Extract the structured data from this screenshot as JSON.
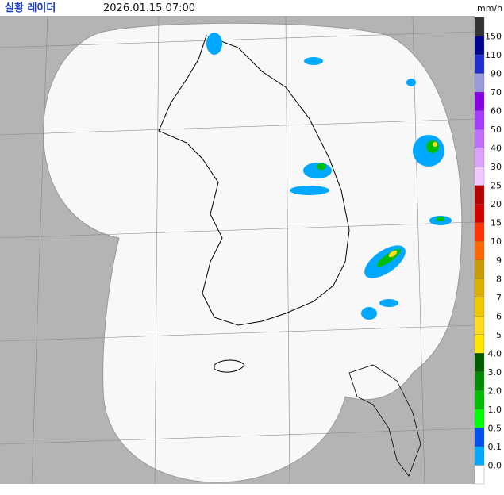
{
  "header": {
    "title": "실황 레이더",
    "time": "2026.01.15.07:00",
    "unit": "mm/h"
  },
  "legend": {
    "top_color": "#333333",
    "items": [
      {
        "label": "150",
        "color": "#000390"
      },
      {
        "label": "110",
        "color": "#1f2dd2"
      },
      {
        "label": "90",
        "color": "#9b9bdc"
      },
      {
        "label": "70",
        "color": "#8a00e6"
      },
      {
        "label": "60",
        "color": "#a53cff"
      },
      {
        "label": "50",
        "color": "#c070ff"
      },
      {
        "label": "40",
        "color": "#dca0ff"
      },
      {
        "label": "30",
        "color": "#f0c8ff"
      },
      {
        "label": "25",
        "color": "#b40000"
      },
      {
        "label": "20",
        "color": "#d20000"
      },
      {
        "label": "15",
        "color": "#ff3300"
      },
      {
        "label": "10",
        "color": "#ff6600"
      },
      {
        "label": "9",
        "color": "#c89b00"
      },
      {
        "label": "8",
        "color": "#dcb000"
      },
      {
        "label": "7",
        "color": "#f0c800"
      },
      {
        "label": "6",
        "color": "#ffdc1f"
      },
      {
        "label": "5",
        "color": "#ffe600"
      },
      {
        "label": "4.0",
        "color": "#005a00"
      },
      {
        "label": "3.0",
        "color": "#008c00"
      },
      {
        "label": "2.0",
        "color": "#00be00"
      },
      {
        "label": "1.0",
        "color": "#00ff00"
      },
      {
        "label": "0.5",
        "color": "#0050f0"
      },
      {
        "label": "0.1",
        "color": "#00a8ff"
      },
      {
        "label": "0.0",
        "color": "#ffffff"
      }
    ]
  }
}
